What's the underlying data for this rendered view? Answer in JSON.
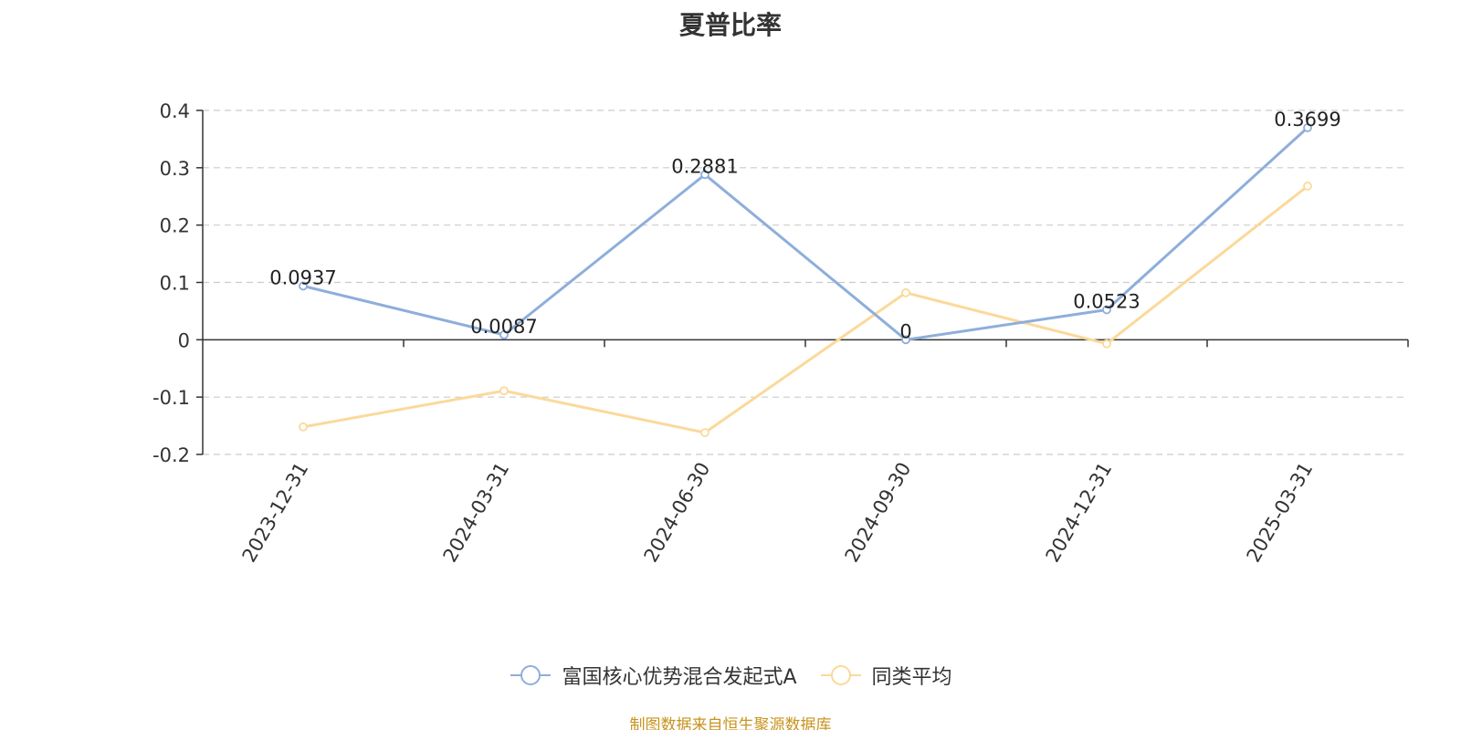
{
  "chart_data": {
    "type": "line",
    "title": "夏普比率",
    "categories": [
      "2023-12-31",
      "2024-03-31",
      "2024-06-30",
      "2024-09-30",
      "2024-12-31",
      "2025-03-31"
    ],
    "series": [
      {
        "name": "富国核心优势混合发起式A",
        "color": "#8eaedb",
        "values": [
          0.0937,
          0.0087,
          0.2881,
          0,
          0.0523,
          0.3699
        ],
        "labels": [
          "0.0937",
          "0.0087",
          "0.2881",
          "0",
          "0.0523",
          "0.3699"
        ]
      },
      {
        "name": "同类平均",
        "color": "#fbd99a",
        "values": [
          -0.152,
          -0.089,
          -0.162,
          0.082,
          -0.007,
          0.268
        ]
      }
    ],
    "ylim": [
      -0.2,
      0.4
    ],
    "yticks": [
      -0.2,
      -0.1,
      0,
      0.1,
      0.2,
      0.3,
      0.4
    ],
    "ytick_labels": [
      "-0.2",
      "-0.1",
      "0",
      "0.1",
      "0.2",
      "0.3",
      "0.4"
    ],
    "grid": true,
    "legend_position": "bottom"
  },
  "source_note": "制图数据来自恒生聚源数据库"
}
